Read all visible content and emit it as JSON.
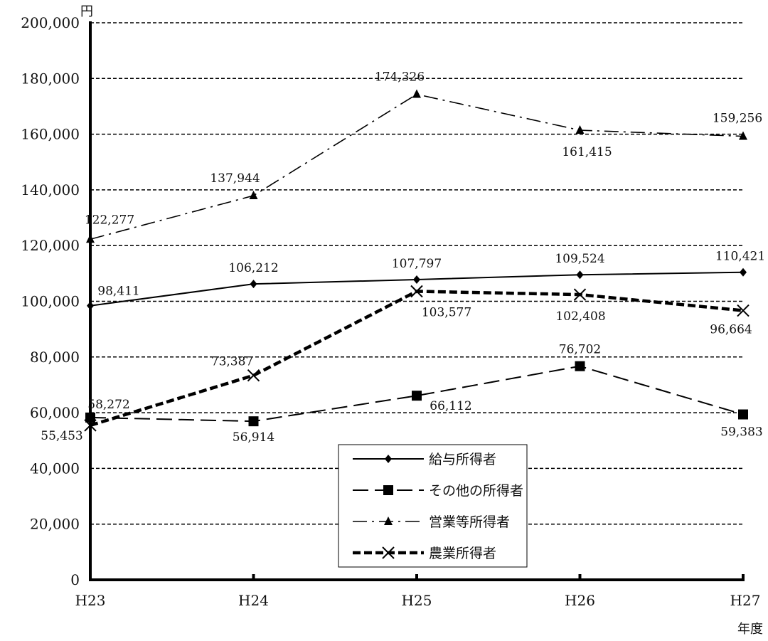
{
  "chart_data": {
    "type": "line",
    "title": "",
    "xlabel": "年度",
    "ylabel": "円",
    "categories": [
      "H23",
      "H24",
      "H25",
      "H26",
      "H27"
    ],
    "ylim": [
      0,
      200000
    ],
    "yticks": [
      0,
      20000,
      40000,
      60000,
      80000,
      100000,
      120000,
      140000,
      160000,
      180000,
      200000
    ],
    "ytick_labels": [
      "0",
      "20,000",
      "40,000",
      "60,000",
      "80,000",
      "100,000",
      "120,000",
      "140,000",
      "160,000",
      "180,000",
      "200,000"
    ],
    "grid": true,
    "legend_position": "bottom-center",
    "series": [
      {
        "name": "給与所得者",
        "values": [
          98411,
          106212,
          107797,
          109524,
          110421
        ],
        "labels": [
          "98,411",
          "106,212",
          "107,797",
          "109,524",
          "110,421"
        ],
        "line_style": "solid",
        "marker": "diamond",
        "color": "#000000"
      },
      {
        "name": "その他の所得者",
        "values": [
          58272,
          56914,
          66112,
          76702,
          59383
        ],
        "labels": [
          "58,272",
          "56,914",
          "66,112",
          "76,702",
          "59,383"
        ],
        "line_style": "dashed",
        "marker": "square",
        "color": "#000000"
      },
      {
        "name": "営業等所得者",
        "values": [
          122277,
          137944,
          174326,
          161415,
          159256
        ],
        "labels": [
          "122,277",
          "137,944",
          "174,326",
          "161,415",
          "159,256"
        ],
        "line_style": "dashdot",
        "marker": "triangle",
        "color": "#000000"
      },
      {
        "name": "農業所得者",
        "values": [
          55453,
          73387,
          103577,
          102408,
          96664
        ],
        "labels": [
          "55,453",
          "73,387",
          "103,577",
          "102,408",
          "96,664"
        ],
        "line_style": "bold-dashed",
        "marker": "x",
        "color": "#000000"
      }
    ]
  }
}
